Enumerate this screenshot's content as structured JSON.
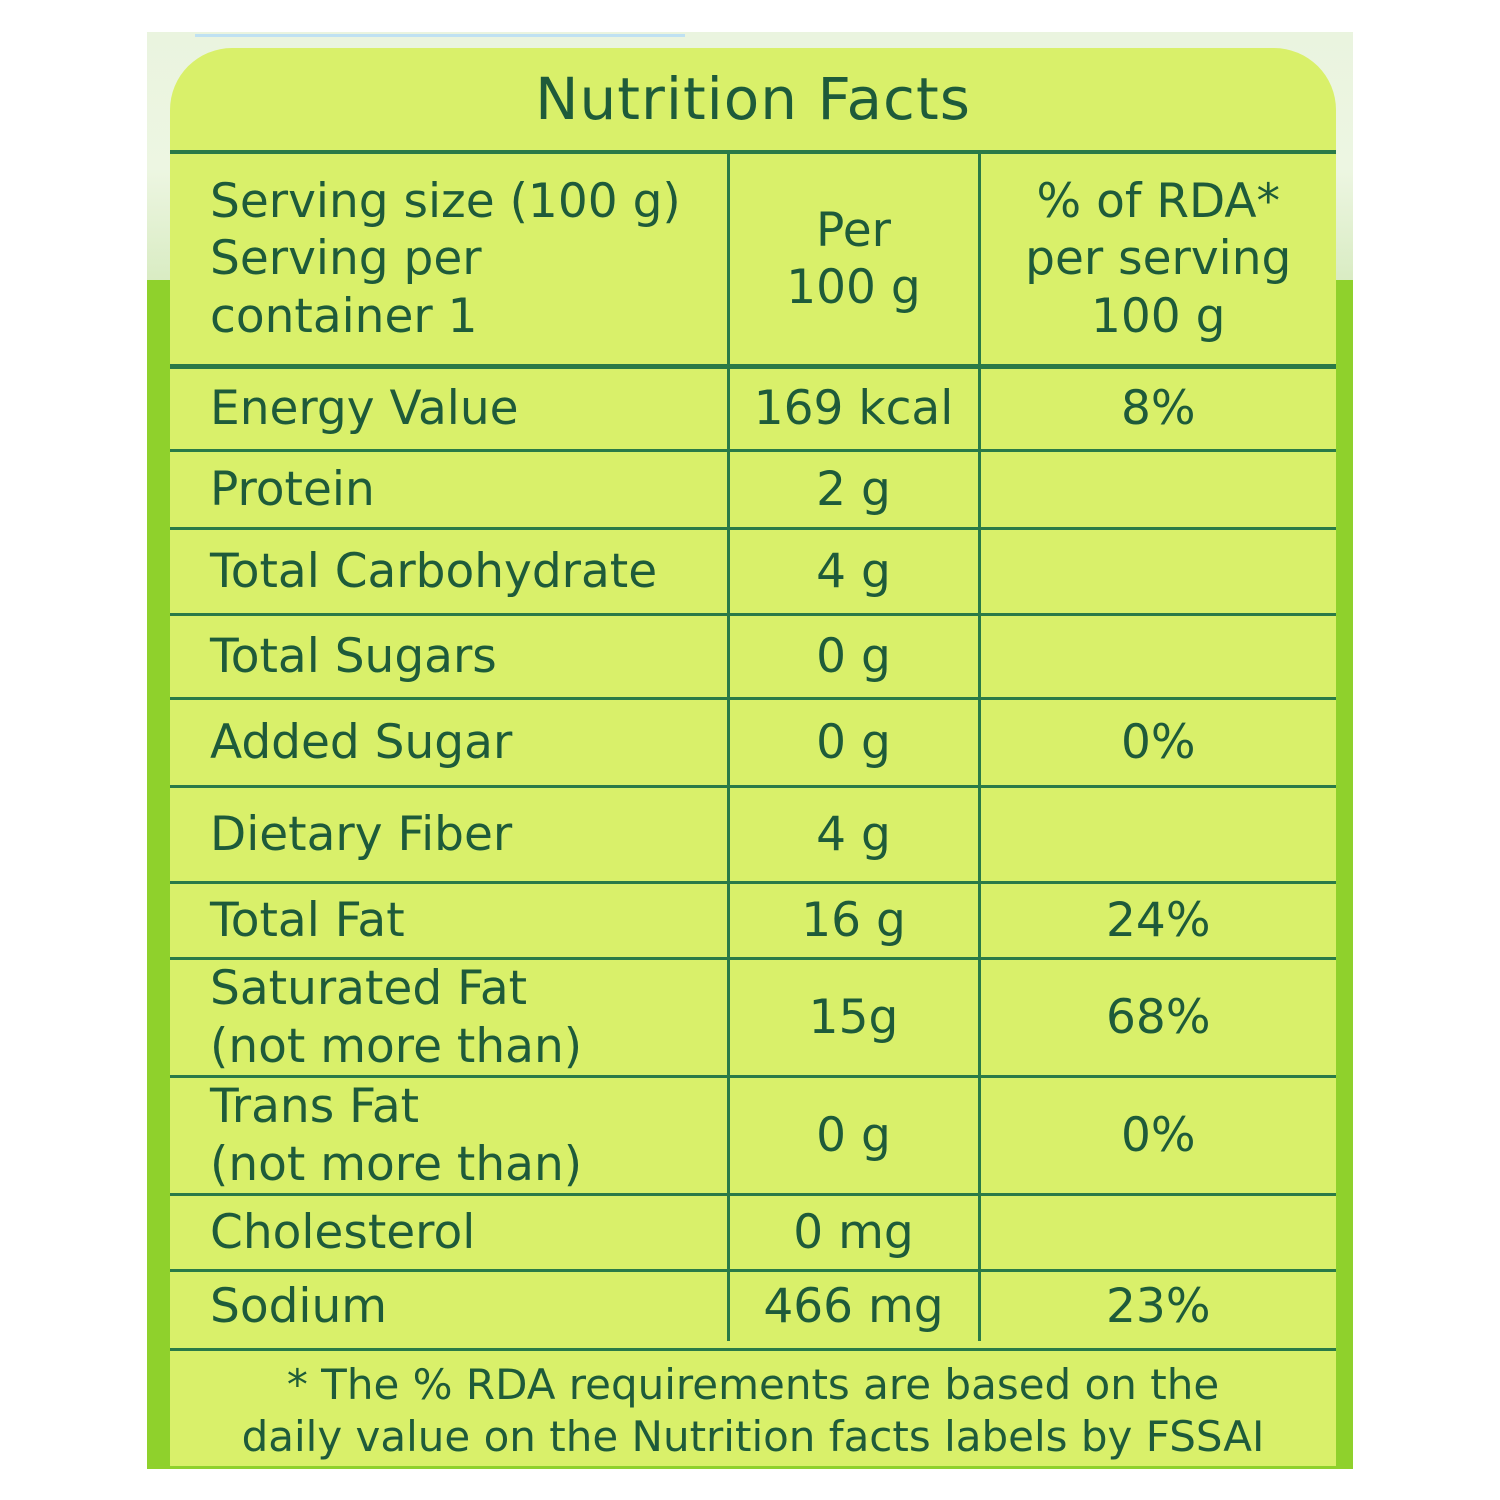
{
  "label": {
    "title": "Nutrition Facts",
    "header": {
      "col1": "Serving size (100 g)\nServing per\ncontainer 1",
      "col2": "Per\n100 g",
      "col3": "% of RDA*\nper serving\n100 g"
    },
    "rows": [
      {
        "name": "Energy Value",
        "amount": "169 kcal",
        "rda": "8%"
      },
      {
        "name": "Protein",
        "amount": "2 g",
        "rda": ""
      },
      {
        "name": "Total Carbohydrate",
        "amount": "4 g",
        "rda": ""
      },
      {
        "name": "Total Sugars",
        "amount": "0 g",
        "rda": ""
      },
      {
        "name": "Added Sugar",
        "amount": "0 g",
        "rda": "0%"
      },
      {
        "name": "Dietary Fiber",
        "amount": "4 g",
        "rda": ""
      },
      {
        "name": "Total Fat",
        "amount": "16 g",
        "rda": "24%"
      },
      {
        "name": "Saturated Fat\n(not more than)",
        "amount": "15g",
        "rda": "68%"
      },
      {
        "name": "Trans Fat\n(not more than)",
        "amount": "0 g",
        "rda": "0%"
      },
      {
        "name": "Cholesterol",
        "amount": "0 mg",
        "rda": ""
      },
      {
        "name": "Sodium",
        "amount": "466 mg",
        "rda": "23%"
      }
    ],
    "footnote": "* The % RDA requirements are based on the\ndaily value on the Nutrition facts labels by  FSSAI"
  },
  "colors": {
    "label_background": "#d9f06a",
    "text": "#1e5b3a",
    "rule": "#2a7a47",
    "backdrop": "#8fd12c"
  }
}
